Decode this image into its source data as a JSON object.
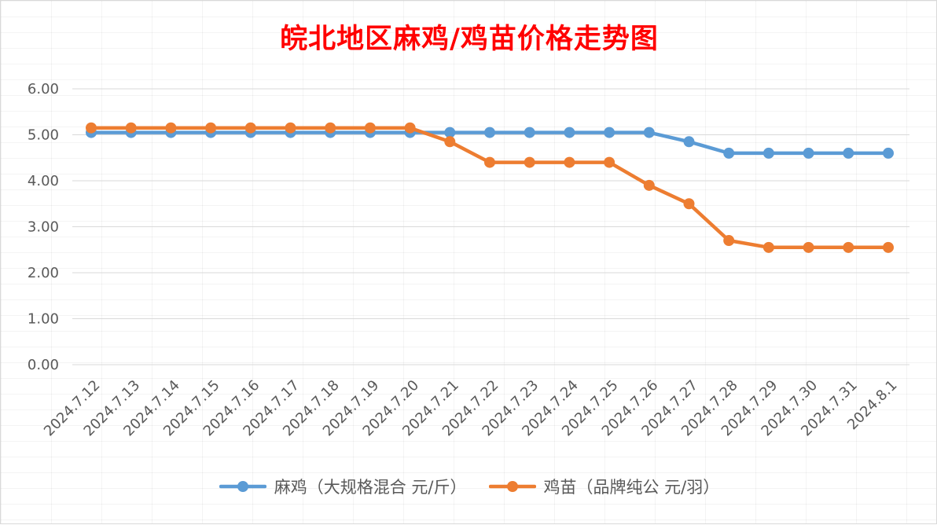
{
  "colors": {
    "series_1": "#5b9bd5",
    "series_2": "#ed7d31",
    "title": "#ff0000",
    "grid": "#d9d9d9",
    "axis_text": "#595959"
  },
  "chart_data": {
    "type": "line",
    "title": "皖北地区麻鸡/鸡苗价格走势图",
    "xlabel": "",
    "ylabel": "",
    "categories": [
      "2024.7.12",
      "2024.7.13",
      "2024.7.14",
      "2024.7.15",
      "2024.7.16",
      "2024.7.17",
      "2024.7.18",
      "2024.7.19",
      "2024.7.20",
      "2024.7.21",
      "2024.7.22",
      "2024.7.23",
      "2024.7.24",
      "2024.7.25",
      "2024.7.26",
      "2024.7.27",
      "2024.7.28",
      "2024.7.29",
      "2024.7.30",
      "2024.7.31",
      "2024.8.1"
    ],
    "ylim": [
      0,
      6
    ],
    "yticks": [
      "0.00",
      "1.00",
      "2.00",
      "3.00",
      "4.00",
      "5.00",
      "6.00"
    ],
    "grid": true,
    "legend_position": "bottom",
    "series": [
      {
        "name": "麻鸡（大规格混合 元/斤）",
        "values": [
          5.05,
          5.05,
          5.05,
          5.05,
          5.05,
          5.05,
          5.05,
          5.05,
          5.05,
          5.05,
          5.05,
          5.05,
          5.05,
          5.05,
          5.05,
          4.85,
          4.6,
          4.6,
          4.6,
          4.6,
          4.6
        ]
      },
      {
        "name": "鸡苗（品牌纯公 元/羽）",
        "values": [
          5.15,
          5.15,
          5.15,
          5.15,
          5.15,
          5.15,
          5.15,
          5.15,
          5.15,
          4.85,
          4.4,
          4.4,
          4.4,
          4.4,
          3.9,
          3.5,
          2.7,
          2.55,
          2.55,
          2.55,
          2.55
        ]
      }
    ]
  }
}
